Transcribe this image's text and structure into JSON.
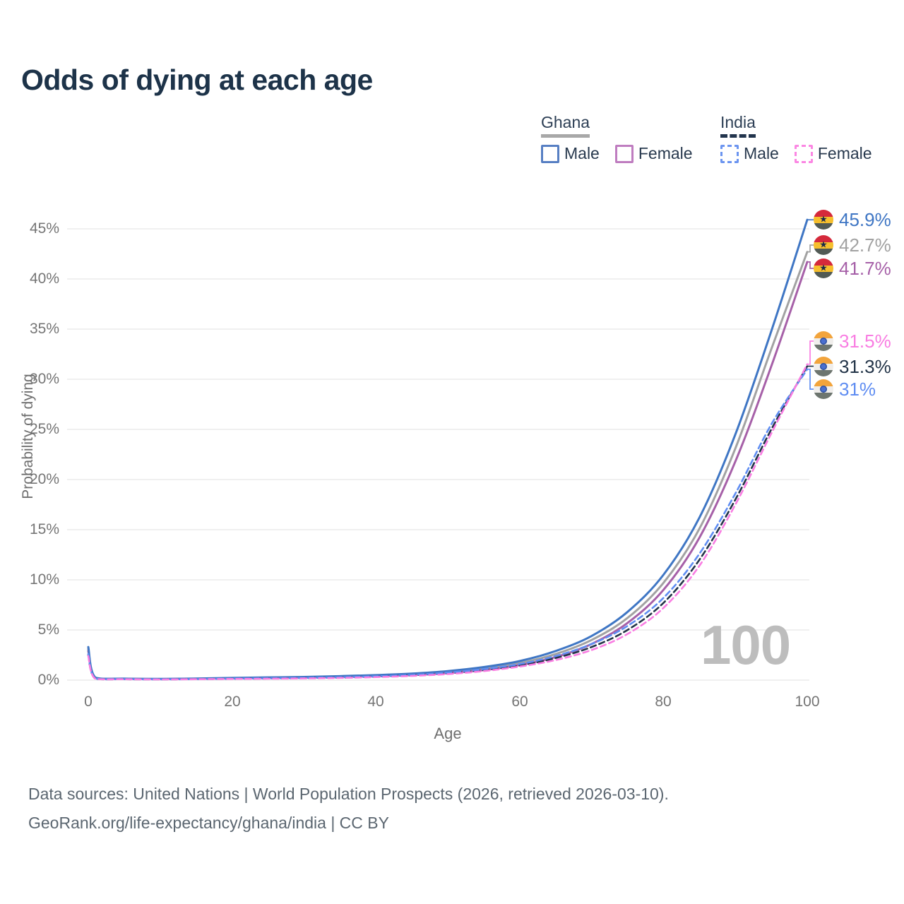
{
  "title": "Odds of dying at each age",
  "legend": {
    "groups": [
      {
        "label": "Ghana",
        "underline_color": "#a8a8a8",
        "underline_style": "solid",
        "items": [
          {
            "label": "Male",
            "color": "#577fc3",
            "line_style": "solid"
          },
          {
            "label": "Female",
            "color": "#bf7dc0",
            "line_style": "solid"
          }
        ]
      },
      {
        "label": "India",
        "underline_color": "#22344d",
        "underline_style": "dashed",
        "items": [
          {
            "label": "Male",
            "color": "#6c95f0",
            "line_style": "dashed"
          },
          {
            "label": "Female",
            "color": "#fb87e3",
            "line_style": "dashed"
          }
        ]
      }
    ]
  },
  "axes": {
    "y_title": "Probability of dying",
    "x_title": "Age",
    "y_ticks": [
      "45%",
      "40%",
      "35%",
      "30%",
      "25%",
      "20%",
      "15%",
      "10%",
      "5%",
      "0%"
    ],
    "x_ticks": [
      "0",
      "20",
      "40",
      "60",
      "80",
      "100"
    ]
  },
  "watermark": "100",
  "end_labels": [
    {
      "flag": "ghana-flag",
      "country": "Ghana",
      "series": "Ghana Male",
      "label": "45.9%",
      "color": "#3f76c4"
    },
    {
      "flag": "ghana-flag",
      "country": "Ghana",
      "series": "Ghana Both sexes",
      "label": "42.7%",
      "color": "#a2a2a2"
    },
    {
      "flag": "ghana-flag",
      "country": "Ghana",
      "series": "Ghana Female",
      "label": "41.7%",
      "color": "#a660a8"
    },
    {
      "flag": "india-flag",
      "country": "India",
      "series": "India Female",
      "label": "31.5%",
      "color": "#f97de2"
    },
    {
      "flag": "india-flag",
      "country": "India",
      "series": "India Both sexes",
      "label": "31.3%",
      "color": "#233448"
    },
    {
      "flag": "india-flag",
      "country": "India",
      "series": "India Male",
      "label": "31%",
      "color": "#5f8df2"
    }
  ],
  "footer": {
    "line1": "Data sources: United Nations | World Population Prospects (2026, retrieved 2026-03-10).",
    "line2": "GeoRank.org/life-expectancy/ghana/india | CC BY"
  },
  "chart_data": {
    "type": "line",
    "title": "Odds of dying at each age",
    "xlabel": "Age",
    "ylabel": "Probability of dying",
    "x_range": [
      0,
      100
    ],
    "y_range_percent": [
      0,
      47
    ],
    "grid": "horizontal-only",
    "y_grid": [
      0,
      5,
      10,
      15,
      20,
      25,
      30,
      35,
      40,
      45
    ],
    "x": [
      0,
      1,
      5,
      10,
      15,
      20,
      25,
      30,
      35,
      40,
      45,
      50,
      55,
      60,
      65,
      70,
      75,
      80,
      85,
      90,
      95,
      100
    ],
    "series": [
      {
        "name": "Ghana Male",
        "country": "Ghana",
        "sex": "male",
        "style": "solid",
        "color": "#3f76c4",
        "end_value_pct": 45.9,
        "values": [
          3.3,
          0.25,
          0.15,
          0.12,
          0.16,
          0.22,
          0.27,
          0.32,
          0.4,
          0.5,
          0.65,
          0.9,
          1.3,
          1.9,
          2.9,
          4.4,
          6.8,
          10.5,
          16.2,
          24.5,
          34.8,
          45.9
        ]
      },
      {
        "name": "Ghana Both sexes",
        "country": "Ghana",
        "sex": "both",
        "style": "solid",
        "color": "#a2a2a2",
        "end_value_pct": 42.7,
        "values": [
          3.1,
          0.22,
          0.14,
          0.11,
          0.14,
          0.19,
          0.23,
          0.28,
          0.35,
          0.44,
          0.57,
          0.8,
          1.15,
          1.7,
          2.6,
          4.0,
          6.2,
          9.7,
          15.1,
          23.1,
          33.0,
          42.7
        ]
      },
      {
        "name": "Ghana Female",
        "country": "Ghana",
        "sex": "female",
        "style": "solid",
        "color": "#a660a8",
        "end_value_pct": 41.7,
        "values": [
          2.9,
          0.2,
          0.13,
          0.1,
          0.13,
          0.17,
          0.2,
          0.25,
          0.3,
          0.38,
          0.5,
          0.7,
          1.0,
          1.5,
          2.3,
          3.6,
          5.7,
          9.0,
          14.2,
          21.8,
          31.3,
          41.7
        ]
      },
      {
        "name": "India Female",
        "country": "India",
        "sex": "female",
        "style": "dashed",
        "color": "#f97de2",
        "end_value_pct": 31.5,
        "values": [
          2.4,
          0.13,
          0.09,
          0.07,
          0.09,
          0.12,
          0.14,
          0.17,
          0.22,
          0.3,
          0.42,
          0.6,
          0.9,
          1.35,
          2.0,
          3.0,
          4.6,
          7.2,
          11.4,
          17.5,
          24.6,
          31.5
        ]
      },
      {
        "name": "India Both sexes",
        "country": "India",
        "sex": "both",
        "style": "dashed",
        "color": "#233448",
        "end_value_pct": 31.3,
        "values": [
          2.5,
          0.14,
          0.09,
          0.08,
          0.1,
          0.13,
          0.16,
          0.2,
          0.25,
          0.34,
          0.47,
          0.68,
          1.0,
          1.45,
          2.2,
          3.3,
          5.0,
          7.7,
          12.0,
          18.0,
          25.0,
          31.3
        ]
      },
      {
        "name": "India Male",
        "country": "India",
        "sex": "male",
        "style": "dashed",
        "color": "#5f8df2",
        "end_value_pct": 31.0,
        "values": [
          2.6,
          0.15,
          0.1,
          0.08,
          0.1,
          0.15,
          0.18,
          0.22,
          0.28,
          0.38,
          0.52,
          0.75,
          1.1,
          1.6,
          2.4,
          3.6,
          5.4,
          8.2,
          12.6,
          18.6,
          25.5,
          31.0
        ]
      }
    ],
    "legend_position": "top-right"
  }
}
